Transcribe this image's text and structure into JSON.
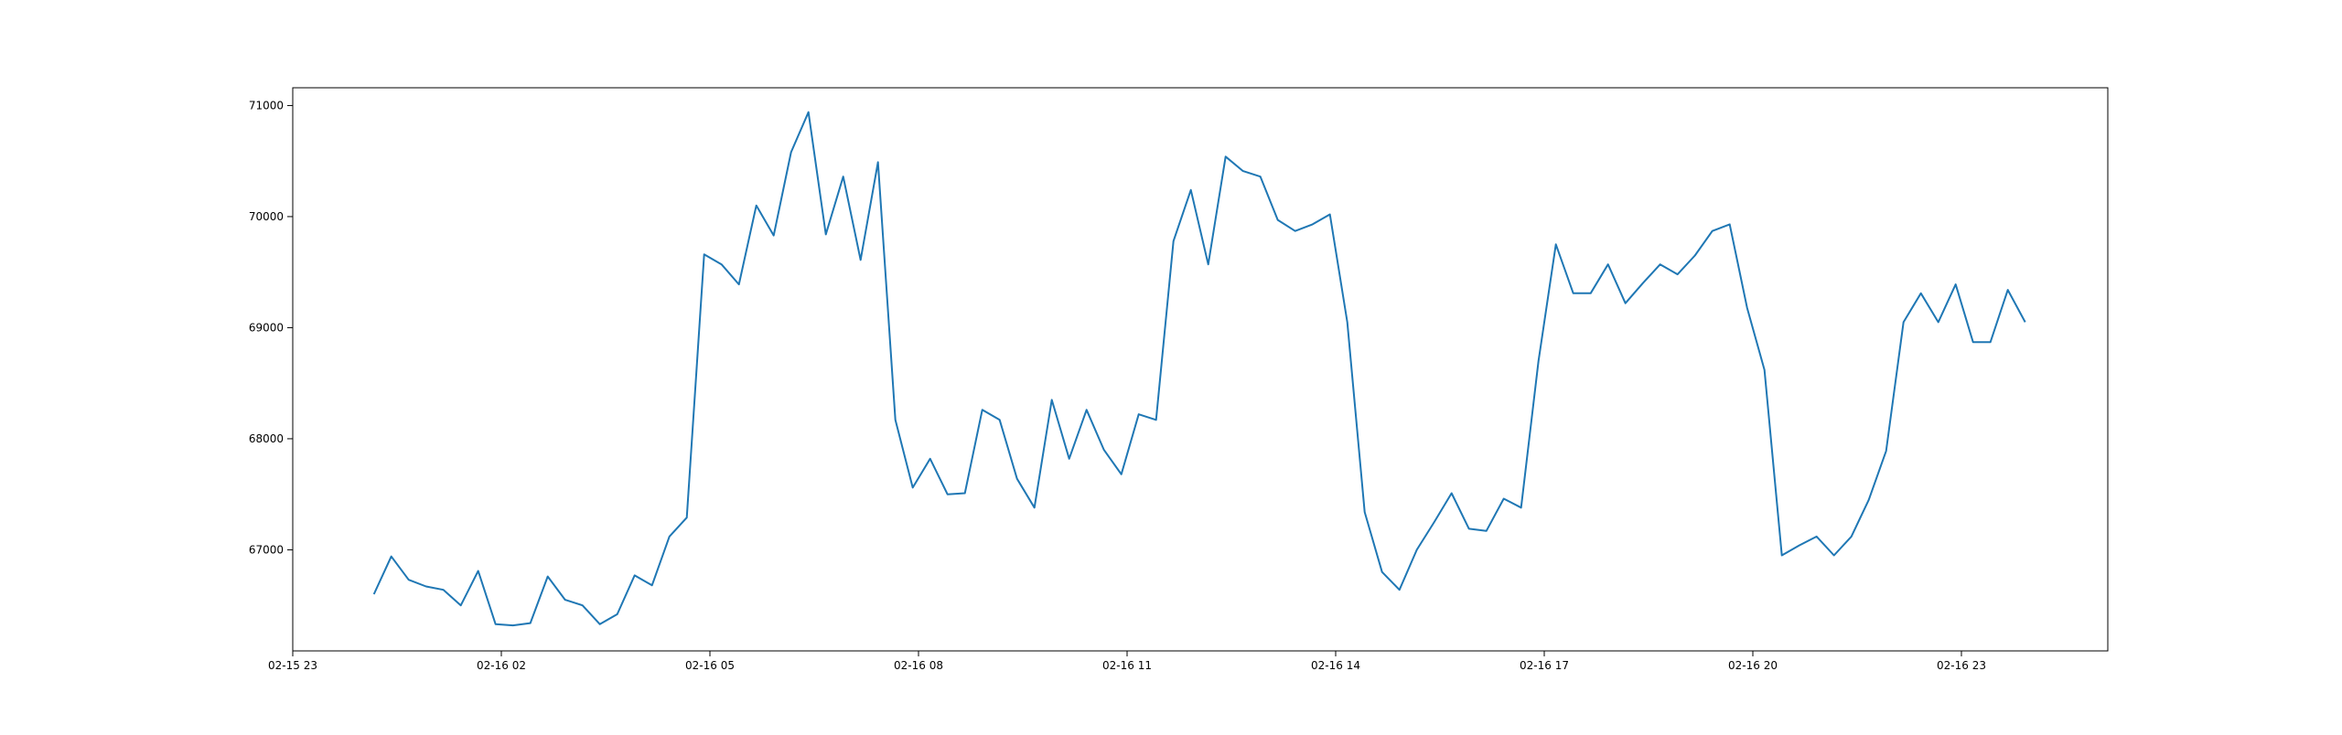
{
  "chart_data": {
    "type": "line",
    "title": "",
    "xlabel": "",
    "ylabel": "",
    "x_ticks": [
      "02-15 23",
      "02-16 02",
      "02-16 05",
      "02-16 08",
      "02-16 11",
      "02-16 14",
      "02-16 17",
      "02-16 20",
      "02-16 23"
    ],
    "y_ticks": [
      "67000",
      "68000",
      "69000",
      "70000",
      "71000"
    ],
    "ylim": [
      66090,
      71160
    ],
    "grid": false,
    "line_color": "#1f77b4",
    "series": [
      {
        "x": [
          "02-16 00:10",
          "02-16 00:25",
          "02-16 00:40",
          "02-16 00:55",
          "02-16 01:10",
          "02-16 01:25",
          "02-16 01:40",
          "02-16 01:55",
          "02-16 02:10",
          "02-16 02:25",
          "02-16 02:40",
          "02-16 02:55",
          "02-16 03:10",
          "02-16 03:25",
          "02-16 03:40",
          "02-16 03:55",
          "02-16 04:10",
          "02-16 04:25",
          "02-16 04:40",
          "02-16 04:55",
          "02-16 05:10",
          "02-16 05:25",
          "02-16 05:40",
          "02-16 05:55",
          "02-16 06:10",
          "02-16 06:25",
          "02-16 06:40",
          "02-16 06:55",
          "02-16 07:10",
          "02-16 07:25",
          "02-16 07:40",
          "02-16 07:55",
          "02-16 08:10",
          "02-16 08:25",
          "02-16 08:40",
          "02-16 08:55",
          "02-16 09:10",
          "02-16 09:25",
          "02-16 09:40",
          "02-16 09:55",
          "02-16 10:10",
          "02-16 10:25",
          "02-16 10:40",
          "02-16 10:55",
          "02-16 11:10",
          "02-16 11:25",
          "02-16 11:40",
          "02-16 11:55",
          "02-16 12:10",
          "02-16 12:25",
          "02-16 12:40",
          "02-16 12:55",
          "02-16 13:10",
          "02-16 13:25",
          "02-16 13:40",
          "02-16 13:55",
          "02-16 14:10",
          "02-16 14:25",
          "02-16 14:40",
          "02-16 14:55",
          "02-16 15:10",
          "02-16 15:25",
          "02-16 15:40",
          "02-16 15:55",
          "02-16 16:10",
          "02-16 16:25",
          "02-16 16:40",
          "02-16 16:55",
          "02-16 17:10",
          "02-16 17:25",
          "02-16 17:40",
          "02-16 17:55",
          "02-16 18:10",
          "02-16 18:25",
          "02-16 18:40",
          "02-16 18:55",
          "02-16 19:10",
          "02-16 19:25",
          "02-16 19:40",
          "02-16 19:55",
          "02-16 20:10",
          "02-16 20:25",
          "02-16 20:40",
          "02-16 20:55",
          "02-16 21:10",
          "02-16 21:25",
          "02-16 21:40",
          "02-16 21:55",
          "02-16 22:10",
          "02-16 22:25",
          "02-16 22:40",
          "02-16 22:55",
          "02-16 23:10",
          "02-16 23:25",
          "02-16 23:40",
          "02-16 23:55"
        ],
        "values": [
          66600,
          66940,
          66730,
          66670,
          66640,
          66500,
          66810,
          66330,
          66320,
          66340,
          66760,
          66550,
          66500,
          66330,
          66420,
          66770,
          66680,
          67120,
          67290,
          69660,
          69570,
          69390,
          70100,
          69830,
          70580,
          70940,
          69840,
          70360,
          69610,
          70490,
          68170,
          67560,
          67820,
          67500,
          67510,
          68260,
          68170,
          67640,
          67380,
          68350,
          67820,
          68260,
          67900,
          67680,
          68220,
          68170,
          69780,
          70240,
          69570,
          70540,
          70410,
          70360,
          69970,
          69870,
          69930,
          70020,
          69050,
          67340,
          66800,
          66640,
          67000,
          67250,
          67510,
          67190,
          67170,
          67460,
          67380,
          68700,
          69750,
          69310,
          69310,
          69570,
          69220,
          69400,
          69570,
          69480,
          69650,
          69870,
          69930,
          69180,
          68620,
          66950,
          67040,
          67120,
          66950,
          67120,
          67450,
          67890,
          69050,
          69310,
          69050,
          69390,
          68870,
          68870,
          69340,
          69050
        ]
      }
    ]
  }
}
